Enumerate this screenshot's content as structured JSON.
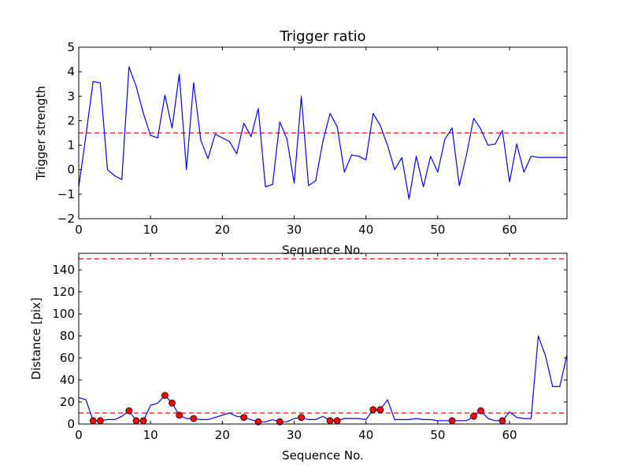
{
  "chart_data": [
    {
      "type": "line",
      "title": "Trigger ratio",
      "xlabel": "Sequence No.",
      "ylabel": "Trigger strength",
      "xlim": [
        0,
        68
      ],
      "ylim": [
        -2,
        5
      ],
      "xticks": [
        0,
        10,
        20,
        30,
        40,
        50,
        60
      ],
      "yticks": [
        -2,
        -1,
        0,
        1,
        2,
        3,
        4,
        5
      ],
      "grid": false,
      "colors": {
        "line": "#0000ff",
        "threshold": "#ff0000"
      },
      "threshold": 1.5,
      "series": [
        {
          "x": [
            0,
            1,
            2,
            3,
            4,
            5,
            6,
            7,
            8,
            9,
            10,
            11,
            12,
            13,
            14,
            15,
            16,
            17,
            18,
            19,
            20,
            21,
            22,
            23,
            24,
            25,
            26,
            27,
            28,
            29,
            30,
            31,
            32,
            33,
            34,
            35,
            36,
            37,
            38,
            39,
            40,
            41,
            42,
            43,
            44,
            45,
            46,
            47,
            48,
            49,
            50,
            51,
            52,
            53,
            54,
            55,
            56,
            57,
            58,
            59,
            60,
            61,
            62,
            63,
            64,
            68
          ],
          "values": [
            -0.7,
            1.4,
            3.6,
            3.55,
            0.0,
            -0.25,
            -0.4,
            4.2,
            3.4,
            2.3,
            1.4,
            1.3,
            3.05,
            1.7,
            3.9,
            0.0,
            3.55,
            1.2,
            0.45,
            1.45,
            1.3,
            1.15,
            0.65,
            1.9,
            1.35,
            2.5,
            -0.7,
            -0.6,
            1.95,
            1.25,
            -0.55,
            3.0,
            -0.65,
            -0.45,
            1.15,
            2.3,
            1.75,
            -0.1,
            0.6,
            0.55,
            0.4,
            2.3,
            1.8,
            1.0,
            0.0,
            0.5,
            -1.2,
            0.55,
            -0.7,
            0.55,
            -0.1,
            1.25,
            1.7,
            -0.65,
            0.6,
            2.1,
            1.65,
            1.0,
            1.05,
            1.6,
            -0.5,
            1.05,
            -0.1,
            0.55,
            0.5,
            0.5
          ]
        }
      ]
    },
    {
      "type": "line",
      "title": "",
      "xlabel": "Sequence No.",
      "ylabel": "Distance [pix]",
      "xlim": [
        0,
        68
      ],
      "ylim": [
        0,
        155
      ],
      "xticks": [
        0,
        10,
        20,
        30,
        40,
        50,
        60
      ],
      "yticks": [
        0,
        20,
        40,
        60,
        80,
        100,
        120,
        140
      ],
      "grid": false,
      "colors": {
        "line": "#0000ff",
        "threshold": "#ff0000",
        "marker": "#ff0000"
      },
      "thresholds": [
        150,
        10
      ],
      "series": [
        {
          "x": [
            0,
            1,
            2,
            3,
            4,
            5,
            6,
            7,
            8,
            9,
            10,
            11,
            12,
            13,
            14,
            15,
            16,
            17,
            18,
            19,
            20,
            21,
            22,
            23,
            24,
            25,
            26,
            27,
            28,
            29,
            30,
            31,
            32,
            33,
            34,
            35,
            36,
            37,
            38,
            39,
            40,
            41,
            42,
            43,
            44,
            45,
            46,
            47,
            48,
            49,
            50,
            51,
            52,
            53,
            54,
            55,
            56,
            57,
            58,
            59,
            60,
            61,
            62,
            63,
            64,
            65,
            66,
            67,
            68
          ],
          "values": [
            24,
            22,
            3,
            3,
            4,
            4,
            7,
            12,
            3,
            3,
            17,
            19,
            26,
            19,
            8,
            5,
            5,
            4,
            4,
            6,
            8,
            10,
            7,
            6,
            4,
            2,
            2,
            4,
            2,
            2,
            5,
            6,
            4,
            4,
            7,
            3,
            3,
            5,
            5,
            5,
            4,
            13,
            13,
            22,
            4,
            4,
            4,
            5,
            4,
            4,
            3,
            3,
            3,
            3,
            3,
            7,
            12,
            5,
            3,
            3,
            11,
            6,
            5,
            5,
            80,
            62,
            34,
            34,
            63
          ]
        }
      ],
      "markers": {
        "x": [
          2,
          3,
          7,
          8,
          9,
          12,
          13,
          14,
          16,
          23,
          25,
          28,
          31,
          35,
          36,
          41,
          42,
          52,
          55,
          56,
          59
        ],
        "values": [
          3,
          3,
          12,
          3,
          3,
          26,
          19,
          8,
          5,
          6,
          2,
          2,
          6,
          3,
          3,
          13,
          13,
          3,
          7,
          12,
          3
        ]
      }
    }
  ]
}
